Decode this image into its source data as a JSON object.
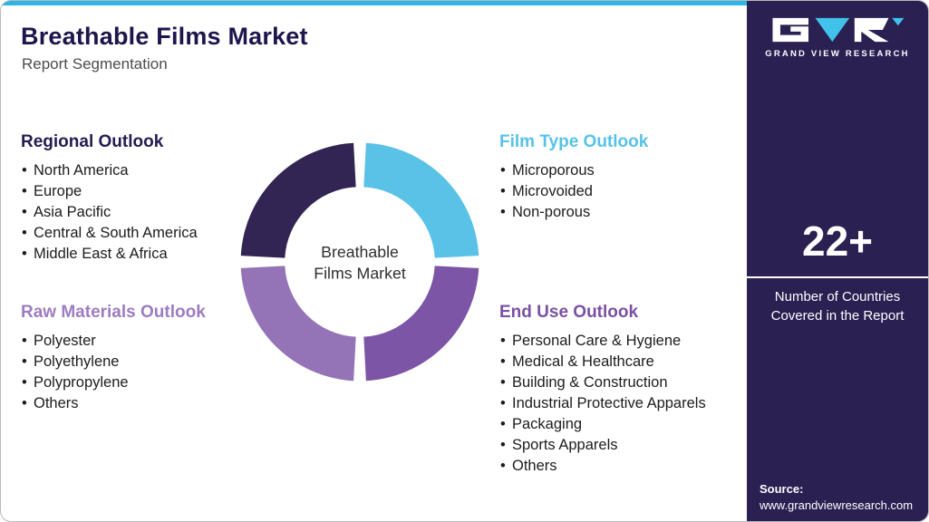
{
  "header": {
    "title": "Breathable Films Market",
    "subtitle": "Report Segmentation"
  },
  "donut": {
    "center_line1": "Breathable",
    "center_line2": "Films Market",
    "segments": [
      {
        "name": "film-type",
        "color": "#5bc2e7"
      },
      {
        "name": "end-use",
        "color": "#7d55a7"
      },
      {
        "name": "raw-materials",
        "color": "#9473b6"
      },
      {
        "name": "regional",
        "color": "#322553"
      }
    ]
  },
  "sections": {
    "regional": {
      "title": "Regional Outlook",
      "items": [
        "North America",
        "Europe",
        "Asia Pacific",
        "Central & South America",
        "Middle East & Africa"
      ]
    },
    "raw_materials": {
      "title": "Raw Materials Outlook",
      "items": [
        "Polyester",
        "Polyethylene",
        "Polypropylene",
        "Others"
      ]
    },
    "film_type": {
      "title": "Film Type Outlook",
      "items": [
        "Microporous",
        "Microvoided",
        "Non-porous"
      ]
    },
    "end_use": {
      "title": "End Use Outlook",
      "items": [
        "Personal Care & Hygiene",
        "Medical & Healthcare",
        "Building & Construction",
        "Industrial Protective Apparels",
        "Packaging",
        "Sports Apparels",
        "Others"
      ]
    }
  },
  "sidebar": {
    "logo_caption": "GRAND VIEW RESEARCH",
    "stat_value": "22+",
    "stat_caption": "Number of Countries Covered in the Report",
    "source_label": "Source:",
    "source_url": "www.grandviewresearch.com"
  },
  "colors": {
    "accent_bar": "#2eb5e5",
    "title_navy": "#1d164d",
    "sidebar_bg": "#2b2052",
    "heading_regional": "#241c4f",
    "heading_raw_materials": "#9d7cc2",
    "heading_film_type": "#56c2e9",
    "heading_end_use": "#7b50a3"
  }
}
